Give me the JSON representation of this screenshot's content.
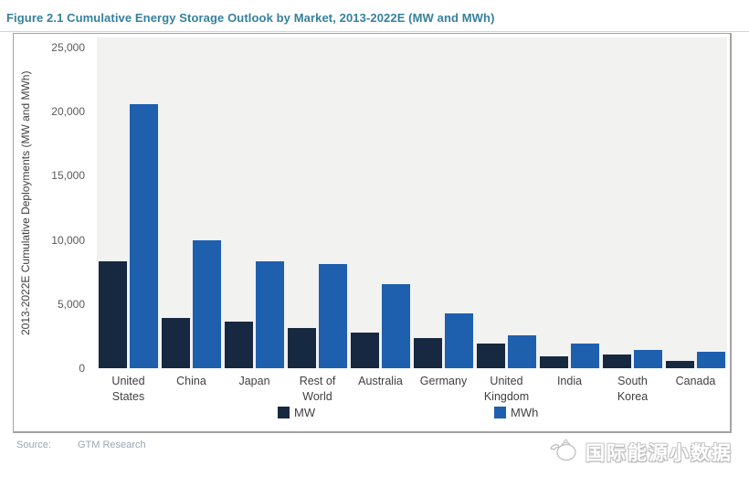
{
  "figure": {
    "title": "Figure 2.1  Cumulative Energy Storage Outlook by Market, 2013-2022E (MW and MWh)"
  },
  "source": {
    "label": "Source:",
    "value": "GTM Research"
  },
  "watermark": {
    "text": "国际能源小数据"
  },
  "colors": {
    "title_text": "#35809E",
    "mw_bar": "#162940",
    "mwh_bar": "#1E5FAE",
    "plot_background": "#F2F2F1",
    "frame_border": "#A3A3A3",
    "source_text": "#97A8B5"
  },
  "chart_data": {
    "type": "bar",
    "title": "Cumulative Energy Storage Outlook by Market, 2013-2022E",
    "categories": [
      "United States",
      "China",
      "Japan",
      "Rest of World",
      "Australia",
      "Germany",
      "United Kingdom",
      "India",
      "South Korea",
      "Canada"
    ],
    "series": [
      {
        "name": "MW",
        "color": "#162940",
        "values": [
          8300,
          3900,
          3600,
          3100,
          2750,
          2350,
          1950,
          950,
          1100,
          550
        ]
      },
      {
        "name": "MWh",
        "color": "#1E5FAE",
        "values": [
          20600,
          10000,
          8350,
          8100,
          6550,
          4250,
          2600,
          1950,
          1450,
          1300
        ]
      }
    ],
    "xlabel": "",
    "ylabel": "2013-2022E Cumulative Deployments (MW and MWh)",
    "ylim": [
      0,
      25000
    ],
    "yticks": [
      0,
      5000,
      10000,
      15000,
      20000,
      25000
    ],
    "ytick_labels": [
      "0",
      "5,000",
      "10,000",
      "15,000",
      "20,000",
      "25,000"
    ],
    "grid": false,
    "legend_position": "bottom"
  }
}
